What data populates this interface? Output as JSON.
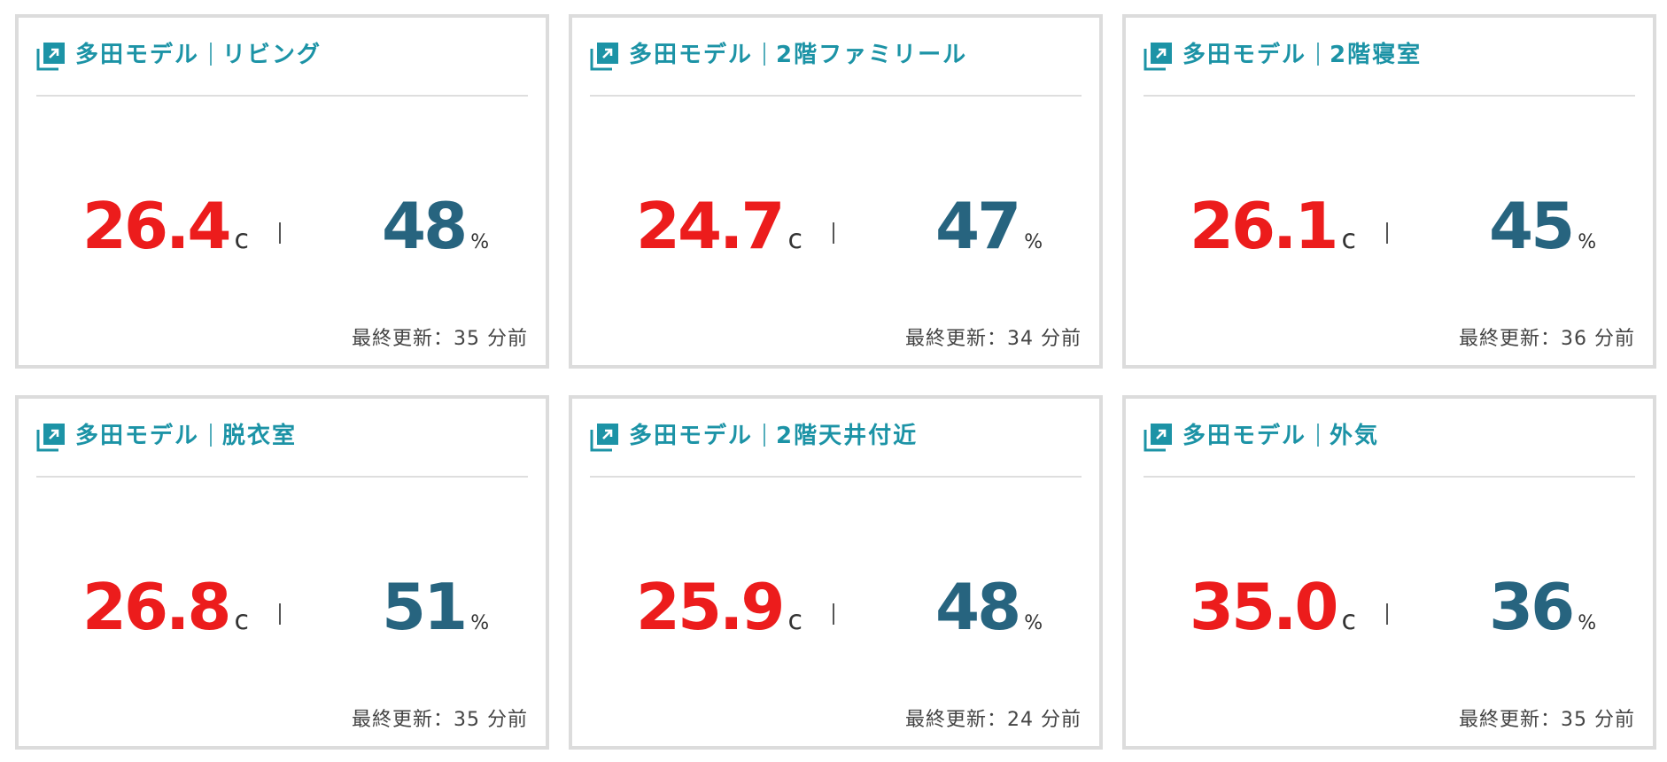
{
  "colors": {
    "title": "#1c93a6",
    "temperature": "#ec1c1c",
    "humidity": "#27647f",
    "card_border": "#dcdcdc"
  },
  "cards": [
    {
      "model": "多田モデル",
      "room": "リビング",
      "temperature": "26.4",
      "temp_unit": "c",
      "humidity": "48",
      "humidity_unit": "%",
      "updated": "最終更新：35 分前",
      "icon": "external-link-icon"
    },
    {
      "model": "多田モデル",
      "room": "2階ファミリール",
      "temperature": "24.7",
      "temp_unit": "c",
      "humidity": "47",
      "humidity_unit": "%",
      "updated": "最終更新：34 分前",
      "icon": "external-link-icon"
    },
    {
      "model": "多田モデル",
      "room": "2階寝室",
      "temperature": "26.1",
      "temp_unit": "c",
      "humidity": "45",
      "humidity_unit": "%",
      "updated": "最終更新：36 分前",
      "icon": "external-link-icon"
    },
    {
      "model": "多田モデル",
      "room": "脱衣室",
      "temperature": "26.8",
      "temp_unit": "c",
      "humidity": "51",
      "humidity_unit": "%",
      "updated": "最終更新：35 分前",
      "icon": "external-link-icon"
    },
    {
      "model": "多田モデル",
      "room": "2階天井付近",
      "temperature": "25.9",
      "temp_unit": "c",
      "humidity": "48",
      "humidity_unit": "%",
      "updated": "最終更新：24 分前",
      "icon": "external-link-icon"
    },
    {
      "model": "多田モデル",
      "room": "外気",
      "temperature": "35.0",
      "temp_unit": "c",
      "humidity": "36",
      "humidity_unit": "%",
      "updated": "最終更新：35 分前",
      "icon": "external-link-icon"
    }
  ]
}
